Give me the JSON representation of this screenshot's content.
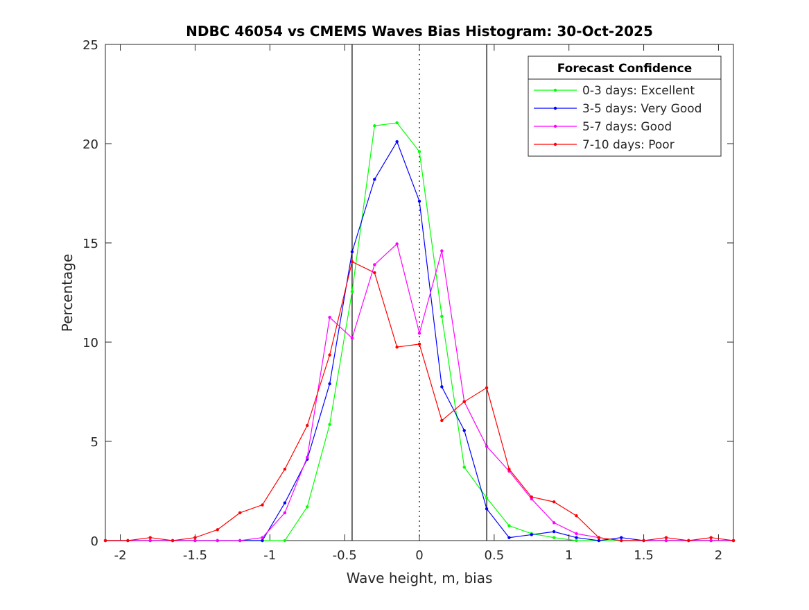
{
  "chart_data": {
    "type": "line",
    "title": "NDBC 46054 vs CMEMS Waves Bias Histogram: 30-Oct-2025",
    "xlabel": "Wave height, m, bias",
    "ylabel": "Percentage",
    "xlim": [
      -2.1,
      2.1
    ],
    "ylim": [
      0,
      25
    ],
    "xticks": [
      -2,
      -1.5,
      -1,
      -0.5,
      0,
      0.5,
      1,
      1.5,
      2
    ],
    "xtick_labels": [
      "-2",
      "-1.5",
      "-1",
      "-0.5",
      "0",
      "0.5",
      "1",
      "1.5",
      "2"
    ],
    "yticks": [
      0,
      5,
      10,
      15,
      20,
      25
    ],
    "ytick_labels": [
      "0",
      "5",
      "10",
      "15",
      "20",
      "25"
    ],
    "grid": false,
    "reference_lines": [
      {
        "x": -0.45,
        "style": "solid"
      },
      {
        "x": 0,
        "style": "dotted"
      },
      {
        "x": 0.45,
        "style": "solid"
      }
    ],
    "legend": {
      "title": "Forecast Confidence",
      "placement": "top-right"
    },
    "x": [
      -2.1,
      -1.95,
      -1.8,
      -1.65,
      -1.5,
      -1.35,
      -1.2,
      -1.05,
      -0.9,
      -0.75,
      -0.6,
      -0.45,
      -0.3,
      -0.15,
      0,
      0.15,
      0.3,
      0.45,
      0.6,
      0.75,
      0.9,
      1.05,
      1.2,
      1.35,
      1.5,
      1.65,
      1.8,
      1.95,
      2.1
    ],
    "series": [
      {
        "name": "0-3 days: Excellent",
        "color": "#00ff00",
        "values": [
          0,
          0,
          0,
          0,
          0,
          0,
          0,
          0,
          0,
          1.7,
          5.85,
          12.55,
          20.9,
          21.05,
          19.6,
          11.3,
          3.7,
          2.15,
          0.75,
          0.35,
          0.15,
          0,
          0,
          0,
          0,
          0,
          0,
          0,
          0
        ]
      },
      {
        "name": "3-5 days: Very Good",
        "color": "#0000ff",
        "values": [
          0,
          0,
          0,
          0,
          0,
          0,
          0,
          0,
          1.9,
          4.1,
          7.9,
          14.55,
          18.2,
          20.1,
          17.1,
          7.75,
          5.55,
          1.6,
          0.15,
          0.3,
          0.45,
          0.15,
          0,
          0.15,
          0,
          0,
          0,
          0,
          0
        ]
      },
      {
        "name": "5-7 days: Good",
        "color": "#ff00ff",
        "values": [
          0,
          0,
          0,
          0,
          0,
          0,
          0,
          0.15,
          1.4,
          4.2,
          11.25,
          10.2,
          13.9,
          14.95,
          10.45,
          14.6,
          7.0,
          4.75,
          3.5,
          2.1,
          0.9,
          0.35,
          0.15,
          0,
          0,
          0,
          0,
          0,
          0
        ]
      },
      {
        "name": "7-10 days: Poor",
        "color": "#ff0000",
        "values": [
          0,
          0,
          0.15,
          0,
          0.15,
          0.55,
          1.4,
          1.8,
          3.6,
          5.8,
          9.35,
          14.05,
          13.5,
          9.75,
          9.9,
          6.05,
          7.0,
          7.7,
          3.6,
          2.2,
          1.95,
          1.25,
          0.15,
          0,
          0,
          0.15,
          0,
          0.15,
          0
        ]
      }
    ]
  }
}
